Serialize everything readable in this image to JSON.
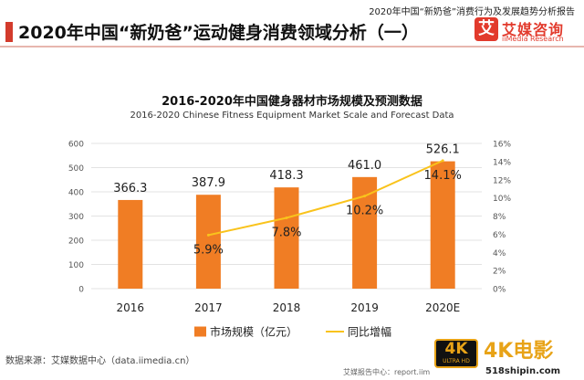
{
  "header": {
    "report_tag": "2020年中国“新奶爸”消费行为及发展趋势分析报告",
    "title": "2020年中国“新奶爸”运动健身消费领域分析（一）"
  },
  "brand": {
    "logo_mark": "艾",
    "logo_text": "艾媒咨询",
    "logo_sub": "iiMedia Research",
    "accent_color": "#e23a2c"
  },
  "chart_data": {
    "type": "bar",
    "title": "2016-2020年中国健身器材市场规模及预测数据",
    "subtitle": "2016-2020 Chinese Fitness Equipment Market Scale and Forecast Data",
    "categories": [
      "2016",
      "2017",
      "2018",
      "2019",
      "2020E"
    ],
    "series": [
      {
        "name": "市场规模（亿元）",
        "type": "bar",
        "axis": "left",
        "color": "#f07d24",
        "values": [
          366.3,
          387.9,
          418.3,
          461.0,
          526.1
        ],
        "labels": [
          "366.3",
          "387.9",
          "418.3",
          "461.0",
          "526.1"
        ]
      },
      {
        "name": "同比增幅",
        "type": "line",
        "axis": "right",
        "color": "#f9c31c",
        "values": [
          null,
          5.9,
          7.8,
          10.2,
          14.1
        ],
        "labels": [
          "",
          "5.9%",
          "7.8%",
          "10.2%",
          "14.1%"
        ]
      }
    ],
    "y_left": {
      "min": 0,
      "max": 600,
      "ticks": [
        "0",
        "100",
        "200",
        "300",
        "400",
        "500",
        "600"
      ]
    },
    "y_right": {
      "min": 0,
      "max": 16,
      "ticks": [
        "0%",
        "2%",
        "4%",
        "6%",
        "8%",
        "10%",
        "12%",
        "14%",
        "16%"
      ]
    },
    "grid": true,
    "legend_position": "bottom"
  },
  "footer": {
    "source": "数据来源：艾媒数据中心（data.iimedia.cn）",
    "note": "艾媒报告中心：report.iim"
  },
  "watermark": {
    "badge_top": "4K",
    "badge_bottom": "ULTRA HD",
    "text": "4K电影",
    "url": "518shipin.com"
  }
}
